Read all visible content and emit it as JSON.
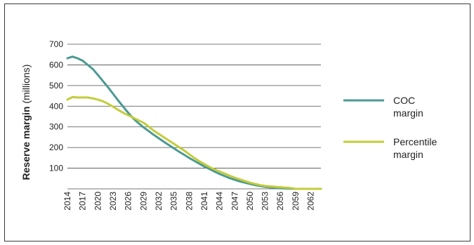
{
  "chart_data": {
    "type": "line",
    "title": "",
    "ylabel_bold": "Reserve margin",
    "ylabel_rest": " (millions)",
    "xlabel": "",
    "ylim": [
      0,
      700
    ],
    "y_ticks": [
      100,
      200,
      300,
      400,
      500,
      600,
      700
    ],
    "grid": "horizontal",
    "legend_position": "right",
    "x_tick_labels": [
      "2014",
      "2017",
      "2020",
      "2023",
      "2026",
      "2029",
      "2032",
      "2035",
      "2038",
      "2041",
      "2044",
      "2047",
      "2050",
      "2053",
      "2056",
      "2059",
      "2062"
    ],
    "x": [
      2014,
      2015,
      2016,
      2017,
      2018,
      2019,
      2020,
      2021,
      2022,
      2023,
      2024,
      2025,
      2026,
      2027,
      2028,
      2029,
      2030,
      2031,
      2032,
      2033,
      2034,
      2035,
      2036,
      2037,
      2038,
      2039,
      2040,
      2041,
      2042,
      2043,
      2044,
      2045,
      2046,
      2047,
      2048,
      2049,
      2050,
      2051,
      2052,
      2053,
      2054,
      2055,
      2056,
      2057,
      2058,
      2059,
      2060,
      2061,
      2062,
      2063,
      2064
    ],
    "series": [
      {
        "name": "COC margin",
        "color": "#4a9a92",
        "values": [
          632,
          640,
          632,
          620,
          600,
          580,
          552,
          522,
          492,
          460,
          428,
          398,
          368,
          340,
          318,
          298,
          280,
          262,
          245,
          228,
          212,
          196,
          180,
          165,
          150,
          136,
          122,
          108,
          96,
          84,
          72,
          62,
          52,
          44,
          36,
          30,
          24,
          18,
          14,
          10,
          7,
          5,
          3,
          2,
          1,
          0,
          0,
          0,
          0,
          0,
          0
        ]
      },
      {
        "name": "Percentile margin",
        "color": "#c3cc3a",
        "values": [
          432,
          444,
          442,
          442,
          442,
          438,
          432,
          424,
          412,
          398,
          382,
          368,
          356,
          344,
          332,
          320,
          302,
          282,
          266,
          250,
          234,
          218,
          202,
          186,
          168,
          150,
          134,
          120,
          106,
          94,
          84,
          74,
          64,
          54,
          46,
          38,
          30,
          24,
          18,
          14,
          12,
          10,
          8,
          6,
          4,
          0,
          0,
          0,
          0,
          0,
          0
        ]
      }
    ]
  }
}
